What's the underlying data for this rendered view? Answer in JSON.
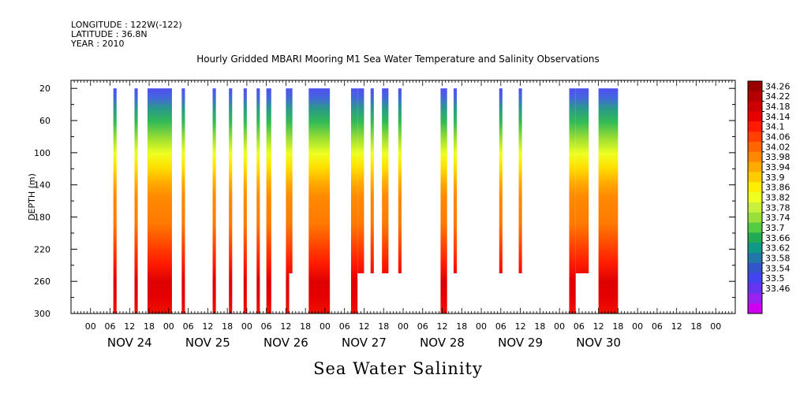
{
  "header": {
    "longitude": "LONGITUDE : 122W(-122)",
    "latitude": "LATITUDE : 36.8N",
    "year": "YEAR : 2010"
  },
  "chart_data": {
    "type": "heatmap",
    "title": "Hourly Gridded MBARI Mooring M1 Sea Water Temperature and Salinity Observations",
    "bottom_title": "Sea Water Salinity",
    "ylabel": "DEPTH (m)",
    "y_ticks": [
      "20",
      "60",
      "100",
      "140",
      "180",
      "220",
      "260",
      "300"
    ],
    "ylim": [
      300,
      20
    ],
    "y_inverted": true,
    "x_unit": "hours since NOV 24 00:00",
    "xlim": [
      -6,
      198
    ],
    "x_hour_ticks": [
      "00",
      "06",
      "12",
      "18"
    ],
    "x_day_labels": [
      "NOV 24",
      "NOV 25",
      "NOV 26",
      "NOV 27",
      "NOV 28",
      "NOV 29",
      "NOV 30"
    ],
    "colorbar": {
      "labels": [
        "34.26",
        "34.22",
        "34.18",
        "34.14",
        "34.1",
        "34.06",
        "34.02",
        "33.98",
        "33.94",
        "33.9",
        "33.86",
        "33.82",
        "33.78",
        "33.74",
        "33.7",
        "33.66",
        "33.62",
        "33.58",
        "33.54",
        "33.5",
        "33.46"
      ],
      "colors": [
        "#990000",
        "#b40000",
        "#cc0000",
        "#e60000",
        "#ff1a00",
        "#ff4000",
        "#ff6600",
        "#ff8800",
        "#ffaa00",
        "#ffcc00",
        "#ffee00",
        "#eeff22",
        "#c8f03c",
        "#99e03c",
        "#55cc44",
        "#22aa55",
        "#119988",
        "#2277aa",
        "#3355cc",
        "#4444ee",
        "#6633ee",
        "#9922ee",
        "#cc00ee"
      ]
    },
    "observation_blocks": [
      {
        "start": 7,
        "end": 8,
        "max_depth": 300
      },
      {
        "start": 13.5,
        "end": 14.5,
        "max_depth": 300
      },
      {
        "start": 17.5,
        "end": 25,
        "max_depth": 300
      },
      {
        "start": 28,
        "end": 29,
        "max_depth": 300
      },
      {
        "start": 37.5,
        "end": 38.5,
        "max_depth": 300
      },
      {
        "start": 42.5,
        "end": 43.5,
        "max_depth": 300
      },
      {
        "start": 47,
        "end": 48,
        "max_depth": 300
      },
      {
        "start": 51,
        "end": 52,
        "max_depth": 300
      },
      {
        "start": 54,
        "end": 55.5,
        "max_depth": 300
      },
      {
        "start": 60,
        "end": 61,
        "max_depth": 300
      },
      {
        "start": 61,
        "end": 62,
        "max_depth": 250
      },
      {
        "start": 67,
        "end": 73.5,
        "max_depth": 300
      },
      {
        "start": 80,
        "end": 82,
        "max_depth": 300
      },
      {
        "start": 82,
        "end": 84,
        "max_depth": 250
      },
      {
        "start": 86,
        "end": 87,
        "max_depth": 250
      },
      {
        "start": 89.5,
        "end": 91.5,
        "max_depth": 250
      },
      {
        "start": 94.5,
        "end": 95.5,
        "max_depth": 250
      },
      {
        "start": 107.5,
        "end": 109.5,
        "max_depth": 300
      },
      {
        "start": 111.5,
        "end": 112.5,
        "max_depth": 250
      },
      {
        "start": 125.5,
        "end": 126.5,
        "max_depth": 250
      },
      {
        "start": 131.5,
        "end": 132.5,
        "max_depth": 250
      },
      {
        "start": 147,
        "end": 149,
        "max_depth": 300
      },
      {
        "start": 149,
        "end": 153,
        "max_depth": 250
      },
      {
        "start": 156,
        "end": 162,
        "max_depth": 300
      }
    ]
  }
}
